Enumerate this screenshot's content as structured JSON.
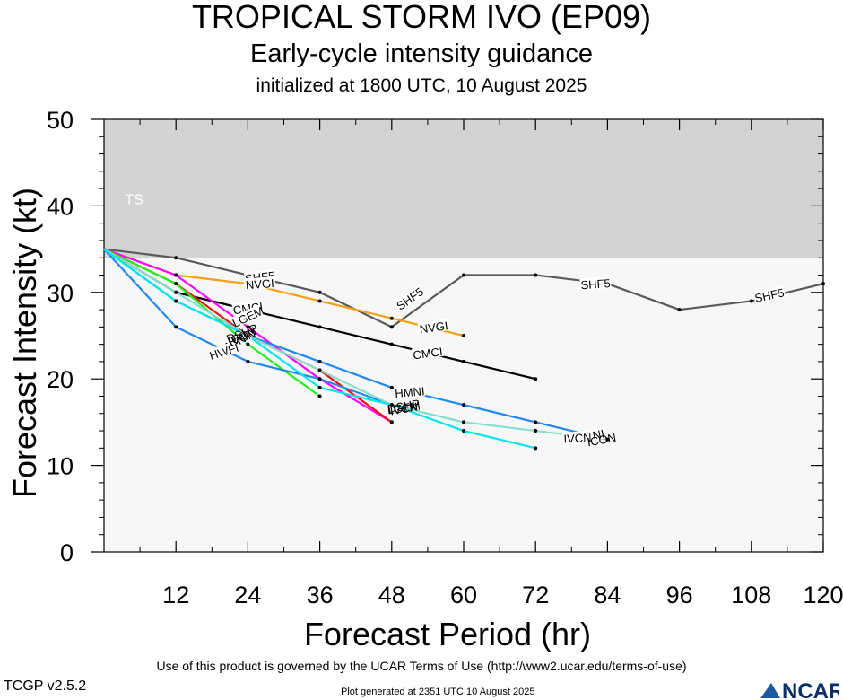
{
  "header": {
    "title": "TROPICAL STORM IVO (EP09)",
    "subtitle": "Early-cycle intensity guidance",
    "init": "initialized at 1800 UTC, 10 August 2025"
  },
  "footer": {
    "terms": "Use of this product is governed by the UCAR Terms of Use (http://www2.ucar.edu/terms-of-use)",
    "version": "TCGP v2.5.2",
    "generated": "Plot generated at 2351 UTC 10 August 2025",
    "logo_text": "NCAR"
  },
  "chart_data": {
    "type": "line",
    "xlabel": "Forecast Period (hr)",
    "ylabel": "Forecast Intensity (kt)",
    "xlim": [
      0,
      120
    ],
    "ylim": [
      0,
      50
    ],
    "xticks": [
      12,
      24,
      36,
      48,
      60,
      72,
      84,
      96,
      108,
      120
    ],
    "yticks": [
      0,
      10,
      20,
      30,
      40,
      50
    ],
    "band": {
      "label": "TS",
      "from": 34,
      "to": 50,
      "color": "#d3d3d3"
    },
    "background_color": "#f7f7f7",
    "series": [
      {
        "name": "SHF5",
        "color": "#5a5a5a",
        "x": [
          0,
          12,
          24,
          36,
          48,
          60,
          72,
          84,
          96,
          108,
          120
        ],
        "y": [
          35,
          34,
          32,
          30,
          26,
          32,
          32,
          31,
          28,
          29,
          31
        ]
      },
      {
        "name": "NVGI",
        "color": "#f5a010",
        "x": [
          0,
          12,
          24,
          36,
          48,
          60
        ],
        "y": [
          35,
          32,
          31,
          29,
          27,
          25
        ]
      },
      {
        "name": "CMCI",
        "color": "#000000",
        "x": [
          0,
          12,
          24,
          36,
          48,
          60,
          72
        ],
        "y": [
          35,
          30,
          28,
          26,
          24,
          22,
          20
        ]
      },
      {
        "name": "LGEM",
        "color": "#ff00ff",
        "x": [
          0,
          12,
          24,
          36,
          48
        ],
        "y": [
          35,
          32,
          26,
          20,
          15
        ]
      },
      {
        "name": "DSHP",
        "color": "#ee1111",
        "x": [
          0,
          12,
          24,
          36,
          48
        ],
        "y": [
          35,
          31,
          25,
          21,
          15
        ]
      },
      {
        "name": "AVNI",
        "color": "#22ee22",
        "x": [
          0,
          12,
          24,
          36
        ],
        "y": [
          35,
          31,
          24,
          18
        ]
      },
      {
        "name": "HWFI",
        "color": "#2288ee",
        "x": [
          0,
          12,
          24,
          36,
          48
        ],
        "y": [
          35,
          26,
          22,
          20,
          17
        ]
      },
      {
        "name": "HMNI",
        "color": "#2288ee",
        "x": [
          0,
          12,
          24,
          36,
          48,
          60,
          72,
          84
        ],
        "y": [
          35,
          29,
          25,
          22,
          19,
          17,
          15,
          13
        ]
      },
      {
        "name": "IVCN",
        "color": "#88ddcc",
        "x": [
          0,
          12,
          24,
          36,
          48,
          60,
          72,
          84
        ],
        "y": [
          35,
          30,
          25,
          21,
          17,
          15,
          14,
          13
        ]
      },
      {
        "name": "ICON",
        "color": "#00e5ee",
        "x": [
          0,
          12,
          24,
          36,
          48,
          60,
          72
        ],
        "y": [
          35,
          29,
          25,
          19,
          17,
          14,
          12
        ]
      }
    ],
    "labels": [
      {
        "text": "SHF5",
        "x": 26,
        "y": 31.8,
        "angle": -7
      },
      {
        "text": "SHF5",
        "x": 51,
        "y": 29.3,
        "angle": -35
      },
      {
        "text": "SHF5",
        "x": 82,
        "y": 31.0,
        "angle": -4
      },
      {
        "text": "SHF5",
        "x": 111,
        "y": 29.7,
        "angle": -12
      },
      {
        "text": "NVGI",
        "x": 26,
        "y": 31.0,
        "angle": -4
      },
      {
        "text": "NVGI",
        "x": 55,
        "y": 26.0,
        "angle": -8
      },
      {
        "text": "CMCI",
        "x": 24,
        "y": 28.2,
        "angle": -8
      },
      {
        "text": "CMCI",
        "x": 54,
        "y": 23.0,
        "angle": -8
      },
      {
        "text": "LGEM",
        "x": 24,
        "y": 27.2,
        "angle": -25
      },
      {
        "text": "AVNI",
        "x": 22,
        "y": 24.3,
        "angle": -28
      },
      {
        "text": "HWFI",
        "x": 20,
        "y": 23.2,
        "angle": -18
      },
      {
        "text": "HMNI",
        "x": 51,
        "y": 18.5,
        "angle": -5
      },
      {
        "text": "HMNI",
        "x": 81,
        "y": 13.4,
        "angle": -12
      },
      {
        "text": "IVCN",
        "x": 79,
        "y": 13.2,
        "angle": -3
      }
    ],
    "plain_labels": [
      {
        "text": "DSHP",
        "x": 23,
        "y": 25.3,
        "angle": -22
      },
      {
        "text": "ICON",
        "x": 23,
        "y": 25.0,
        "angle": -24
      },
      {
        "text": "IVCN",
        "x": 23,
        "y": 24.8,
        "angle": -20
      },
      {
        "text": "DSHP",
        "x": 50,
        "y": 16.9,
        "angle": -10
      },
      {
        "text": "LGEM",
        "x": 50,
        "y": 16.7,
        "angle": -8
      },
      {
        "text": "IVCN",
        "x": 50,
        "y": 16.6,
        "angle": -10
      },
      {
        "text": "ICON",
        "x": 83,
        "y": 13.0,
        "angle": -10
      }
    ]
  }
}
